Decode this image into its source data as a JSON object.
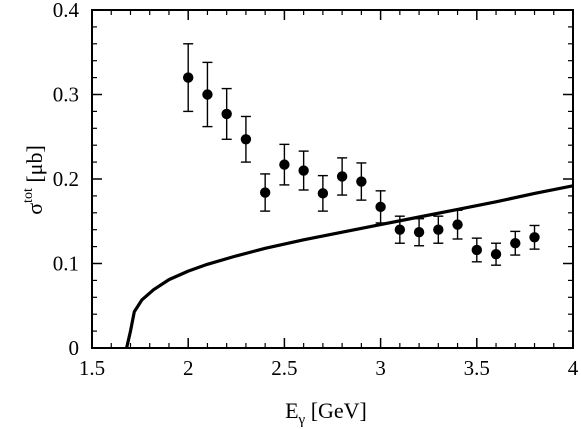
{
  "chart_data": {
    "type": "scatter",
    "xlabel": {
      "main": "E",
      "sub": "γ",
      "unit": " [GeV]"
    },
    "ylabel": {
      "main": "σ",
      "sup": "tot",
      "unit": " [μb]"
    },
    "xlim": [
      1.5,
      4
    ],
    "ylim": [
      0,
      0.4
    ],
    "xticks": [
      "1.5",
      "2",
      "2.5",
      "3",
      "3.5",
      "4"
    ],
    "yticks": [
      "0",
      "0.1",
      "0.2",
      "0.3",
      "0.4"
    ],
    "grid": false,
    "series": [
      {
        "kind": "points-with-errorbars",
        "color": "#000000",
        "points": [
          {
            "x": 2.0,
            "y": 0.32,
            "err": 0.04
          },
          {
            "x": 2.1,
            "y": 0.3,
            "err": 0.038
          },
          {
            "x": 2.2,
            "y": 0.277,
            "err": 0.03
          },
          {
            "x": 2.3,
            "y": 0.247,
            "err": 0.027
          },
          {
            "x": 2.4,
            "y": 0.184,
            "err": 0.022
          },
          {
            "x": 2.5,
            "y": 0.217,
            "err": 0.024
          },
          {
            "x": 2.6,
            "y": 0.21,
            "err": 0.023
          },
          {
            "x": 2.7,
            "y": 0.183,
            "err": 0.021
          },
          {
            "x": 2.8,
            "y": 0.203,
            "err": 0.022
          },
          {
            "x": 2.9,
            "y": 0.197,
            "err": 0.022
          },
          {
            "x": 3.0,
            "y": 0.167,
            "err": 0.019
          },
          {
            "x": 3.1,
            "y": 0.14,
            "err": 0.016
          },
          {
            "x": 3.2,
            "y": 0.137,
            "err": 0.016
          },
          {
            "x": 3.3,
            "y": 0.14,
            "err": 0.016
          },
          {
            "x": 3.4,
            "y": 0.146,
            "err": 0.017
          },
          {
            "x": 3.5,
            "y": 0.116,
            "err": 0.014
          },
          {
            "x": 3.6,
            "y": 0.111,
            "err": 0.013
          },
          {
            "x": 3.7,
            "y": 0.124,
            "err": 0.014
          },
          {
            "x": 3.8,
            "y": 0.131,
            "err": 0.014
          }
        ]
      },
      {
        "kind": "line",
        "color": "#000000",
        "points": [
          {
            "x": 1.68,
            "y": 0.0
          },
          {
            "x": 1.7,
            "y": 0.02
          },
          {
            "x": 1.72,
            "y": 0.043
          },
          {
            "x": 1.76,
            "y": 0.057
          },
          {
            "x": 1.82,
            "y": 0.069
          },
          {
            "x": 1.9,
            "y": 0.081
          },
          {
            "x": 2.0,
            "y": 0.091
          },
          {
            "x": 2.1,
            "y": 0.099
          },
          {
            "x": 2.25,
            "y": 0.109
          },
          {
            "x": 2.4,
            "y": 0.118
          },
          {
            "x": 2.6,
            "y": 0.128
          },
          {
            "x": 2.8,
            "y": 0.137
          },
          {
            "x": 3.0,
            "y": 0.146
          },
          {
            "x": 3.2,
            "y": 0.155
          },
          {
            "x": 3.4,
            "y": 0.164
          },
          {
            "x": 3.6,
            "y": 0.173
          },
          {
            "x": 3.8,
            "y": 0.183
          },
          {
            "x": 4.0,
            "y": 0.192
          }
        ]
      }
    ]
  }
}
